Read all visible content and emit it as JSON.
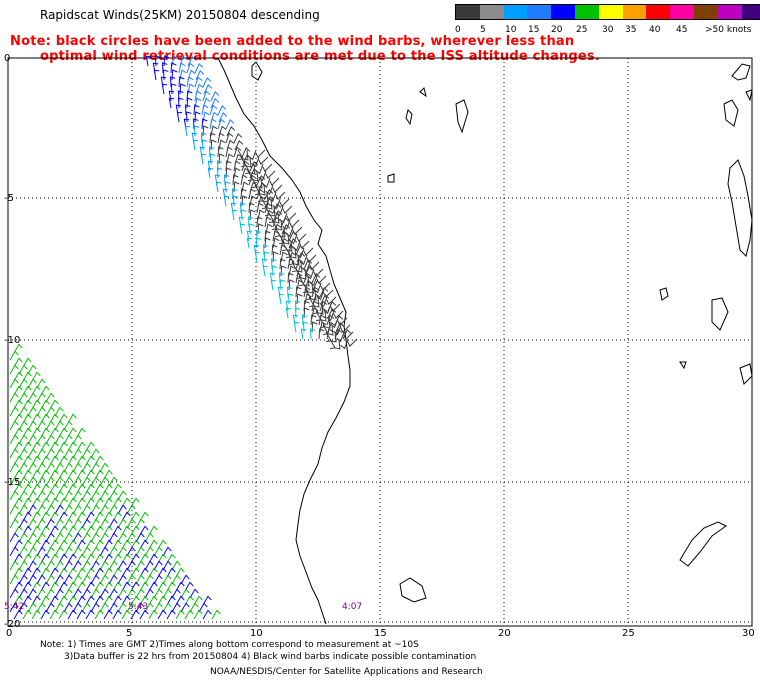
{
  "title": "Rapidscat Winds(25KM) 20150804 descending",
  "note": {
    "line1": "Note: black circles have been added to the wind barbs, wherever less than",
    "line2": "optimal wind retrieval conditions are met due to the ISS altitude changes."
  },
  "legend": {
    "ticks": [
      "0",
      "5",
      "10",
      "15",
      "20",
      "25",
      "30",
      "35",
      "40",
      "45",
      ">50 knots"
    ],
    "colors": [
      "#3a3a3a",
      "#8c8c8c",
      "#00a0ff",
      "#1e7cff",
      "#0000ff",
      "#00c000",
      "#ffff00",
      "#ffa000",
      "#ff0000",
      "#ff00a0",
      "#804000",
      "#c000c0",
      "#400080"
    ]
  },
  "axes": {
    "x_ticks": [
      "0",
      "5",
      "10",
      "15",
      "20",
      "25",
      "30"
    ],
    "y_ticks": [
      "0",
      "-5",
      "-10",
      "-15",
      "-20"
    ]
  },
  "time_labels": [
    "5:42",
    "5:43",
    "4:07"
  ],
  "footer": {
    "note1": "Note: 1) Times are GMT 2)Times along bottom correspond to measurement at ~10S",
    "note2": "3)Data buffer is 22 hrs from 20150804 4) Black wind barbs indicate possible contamination",
    "credit": "NOAA/NESDIS/Center for Satellite Applications and Research"
  },
  "colors": {
    "grid": "#000000",
    "coast": "#000000",
    "note": "#ff0000",
    "time_label": "#800080",
    "barb_swath1": [
      "#0000ff",
      "#1e7cff",
      "#00a0ff",
      "#3a3a3a",
      "#00c0e0"
    ],
    "barb_swath2": [
      "#00c000",
      "#0000ff",
      "#ffff00"
    ]
  }
}
